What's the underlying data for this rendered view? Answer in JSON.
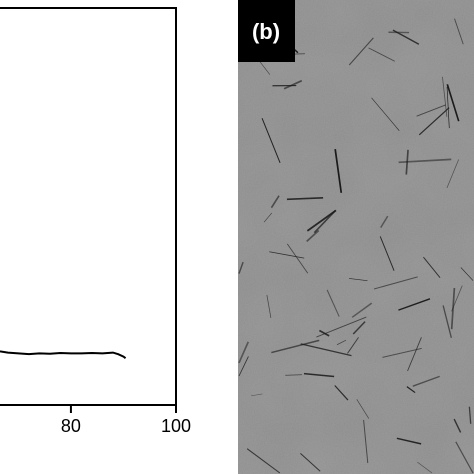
{
  "chart_data": {
    "type": "line",
    "x": [
      66.5,
      68,
      70,
      72,
      74,
      76,
      78,
      80,
      82,
      84,
      86,
      88,
      89,
      90,
      90.4
    ],
    "series": [
      {
        "color": "#000000",
        "values": [
          0.135,
          0.132,
          0.13,
          0.128,
          0.13,
          0.129,
          0.131,
          0.13,
          0.13,
          0.131,
          0.13,
          0.132,
          0.128,
          0.122,
          0.118
        ]
      }
    ],
    "xlim": [
      66.5,
      100
    ],
    "xticks": [
      80,
      100
    ],
    "ylim": [
      0,
      1
    ]
  },
  "panel_b": {
    "label": "(b)"
  }
}
